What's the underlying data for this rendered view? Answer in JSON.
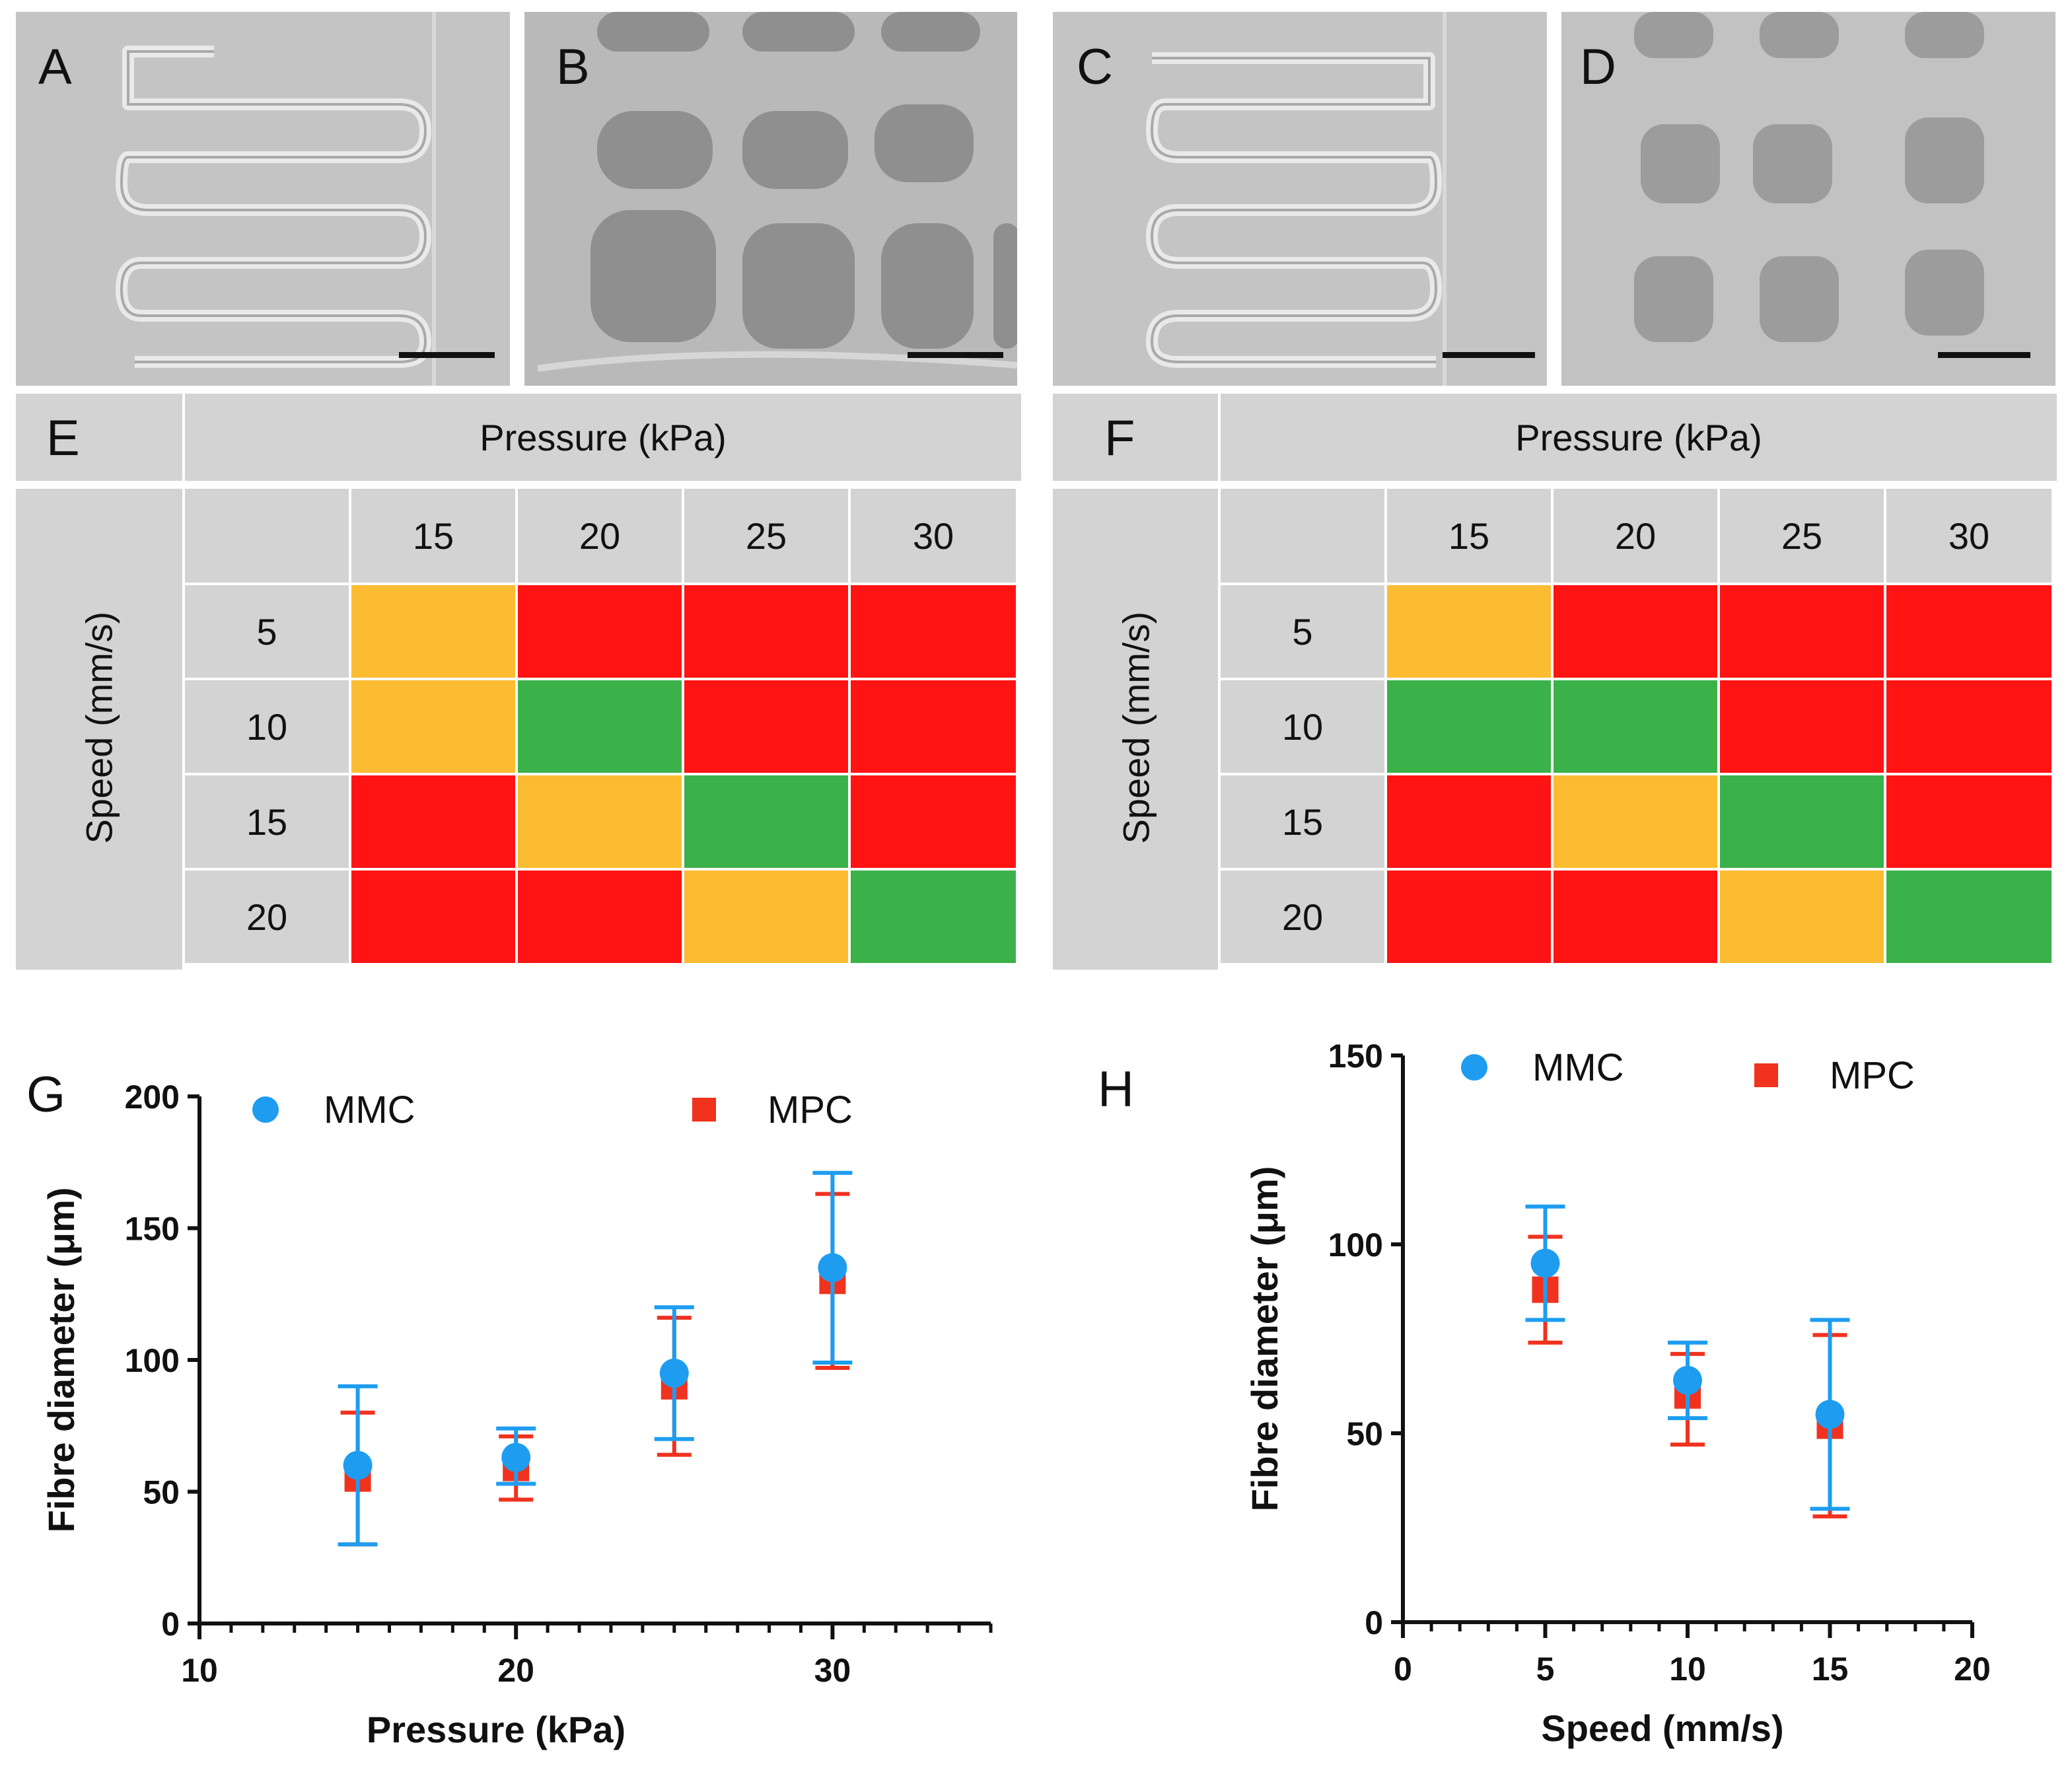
{
  "panels": {
    "A": "A",
    "B": "B",
    "C": "C",
    "D": "D",
    "E": "E",
    "F": "F",
    "G": "G",
    "H": "H"
  },
  "colors": {
    "yellow": "#FCBC31",
    "red": "#FF1313",
    "green": "#3BB14A",
    "mmc": "#1E9DF0",
    "mpc": "#F0321E",
    "header_grey": "#D3D3D3"
  },
  "tables": [
    {
      "id": "E",
      "pressure_header": "Pressure (kPa)",
      "speed_header": "Speed (mm/s)",
      "pressures": [
        "15",
        "20",
        "25",
        "30"
      ],
      "speeds": [
        "5",
        "10",
        "15",
        "20"
      ],
      "matrix": [
        [
          "yellow",
          "red",
          "red",
          "red"
        ],
        [
          "yellow",
          "green",
          "red",
          "red"
        ],
        [
          "red",
          "yellow",
          "green",
          "red"
        ],
        [
          "red",
          "red",
          "yellow",
          "green"
        ]
      ]
    },
    {
      "id": "F",
      "pressure_header": "Pressure (kPa)",
      "speed_header": "Speed (mm/s)",
      "pressures": [
        "15",
        "20",
        "25",
        "30"
      ],
      "speeds": [
        "5",
        "10",
        "15",
        "20"
      ],
      "matrix": [
        [
          "yellow",
          "red",
          "red",
          "red"
        ],
        [
          "green",
          "green",
          "red",
          "red"
        ],
        [
          "red",
          "yellow",
          "green",
          "red"
        ],
        [
          "red",
          "red",
          "yellow",
          "green"
        ]
      ]
    }
  ],
  "chart_data": [
    {
      "id": "G",
      "type": "scatter",
      "title": "",
      "xlabel": "Pressure (kPa)",
      "ylabel": "Fibre diameter (μm)",
      "xlim": [
        10,
        35
      ],
      "ylim": [
        0,
        200
      ],
      "xticks": [
        10,
        20,
        30
      ],
      "yticks": [
        0,
        50,
        100,
        150,
        200
      ],
      "legend": [
        "MMC",
        "MPC"
      ],
      "series": [
        {
          "name": "MPC",
          "x": [
            15,
            20,
            25,
            30
          ],
          "y": [
            55,
            59,
            90,
            130
          ],
          "err_low": [
            30,
            47,
            64,
            97
          ],
          "err_high": [
            80,
            71,
            116,
            163
          ]
        },
        {
          "name": "MMC",
          "x": [
            15,
            20,
            25,
            30
          ],
          "y": [
            60,
            63,
            95,
            135
          ],
          "err_low": [
            30,
            53,
            70,
            99
          ],
          "err_high": [
            90,
            74,
            120,
            171
          ]
        }
      ]
    },
    {
      "id": "H",
      "type": "scatter",
      "title": "",
      "xlabel": "Speed (mm/s)",
      "ylabel": "Fibre diameter (μm)",
      "xlim": [
        0,
        20
      ],
      "ylim": [
        0,
        150
      ],
      "xticks": [
        0,
        5,
        10,
        15,
        20
      ],
      "yticks": [
        0,
        50,
        100,
        150
      ],
      "legend": [
        "MMC",
        "MPC"
      ],
      "series": [
        {
          "name": "MPC",
          "x": [
            5,
            10,
            15
          ],
          "y": [
            88,
            60,
            52
          ],
          "err_low": [
            74,
            47,
            28
          ],
          "err_high": [
            102,
            71,
            76
          ]
        },
        {
          "name": "MMC",
          "x": [
            5,
            10,
            15
          ],
          "y": [
            95,
            64,
            55
          ],
          "err_low": [
            80,
            54,
            30
          ],
          "err_high": [
            110,
            74,
            80
          ]
        }
      ]
    }
  ]
}
